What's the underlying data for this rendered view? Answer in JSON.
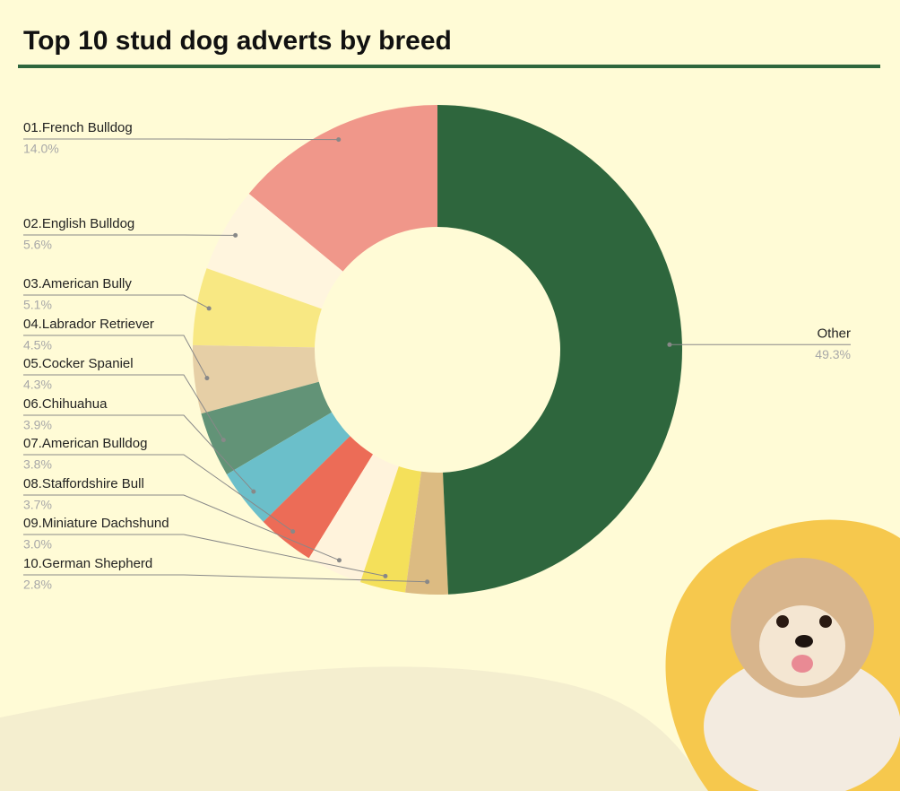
{
  "chart_data": {
    "type": "donut",
    "title": "Top 10 stud dog adverts by breed",
    "categories": [
      "01.French Bulldog",
      "02.English Bulldog",
      "03.American Bully",
      "04.Labrador Retriever",
      "05.Cocker Spaniel",
      "06.Chihuahua",
      "07.American Bulldog",
      "08.Staffordshire Bull",
      "09.Miniature Dachshund",
      "10.German Shepherd",
      "Other"
    ],
    "values": [
      14.0,
      5.6,
      5.1,
      4.5,
      4.3,
      3.9,
      3.8,
      3.7,
      3.0,
      2.8,
      49.3
    ],
    "value_labels": [
      "14.0%",
      "5.6%",
      "5.1%",
      "4.5%",
      "4.3%",
      "3.9%",
      "3.8%",
      "3.7%",
      "3.0%",
      "2.8%",
      "49.3%"
    ],
    "colors": [
      "#f0978a",
      "#fff5de",
      "#f8e883",
      "#e6cfa6",
      "#629377",
      "#6bbfca",
      "#ec6c57",
      "#fff3dc",
      "#f4e05a",
      "#dcbb82",
      "#2e663d"
    ]
  }
}
